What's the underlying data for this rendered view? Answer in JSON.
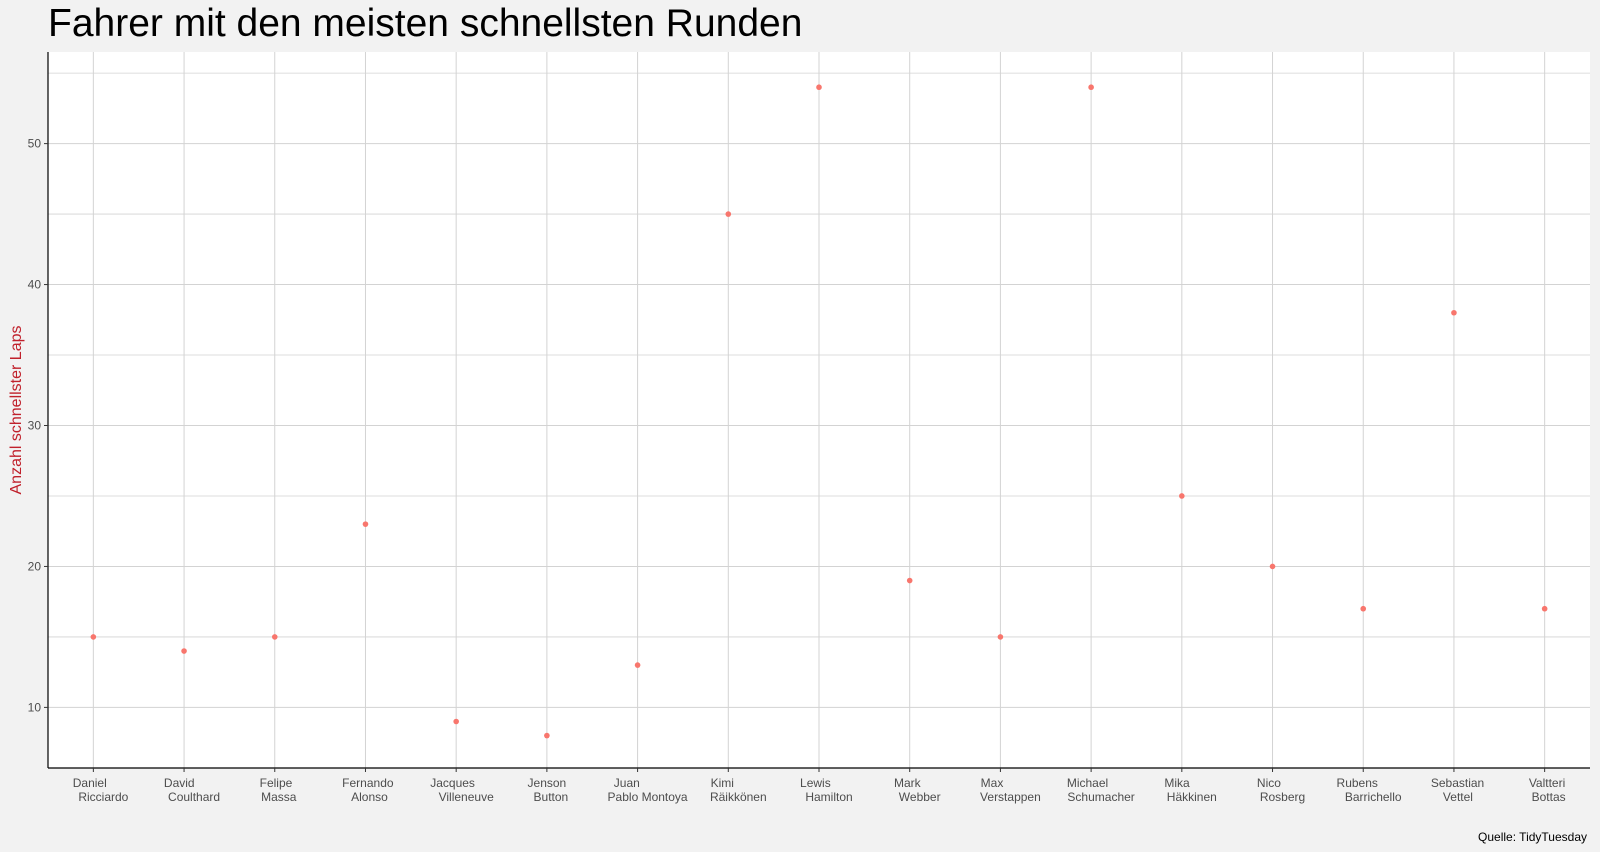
{
  "chart_data": {
    "type": "scatter",
    "title": "Fahrer mit den meisten schnellsten Runden",
    "xlabel": "",
    "ylabel": "Anzahl schnellster Laps",
    "caption": "Quelle: TidyTuesday",
    "categories": [
      [
        "Daniel",
        "Ricciardo"
      ],
      [
        "David",
        "Coulthard"
      ],
      [
        "Felipe",
        "Massa"
      ],
      [
        "Fernando",
        "Alonso"
      ],
      [
        "Jacques",
        "Villeneuve"
      ],
      [
        "Jenson",
        "Button"
      ],
      [
        "Juan",
        "Pablo Montoya"
      ],
      [
        "Kimi",
        "Räikkönen"
      ],
      [
        "Lewis",
        "Hamilton"
      ],
      [
        "Mark",
        "Webber"
      ],
      [
        "Max",
        "Verstappen"
      ],
      [
        "Michael",
        "Schumacher"
      ],
      [
        "Mika",
        "Häkkinen"
      ],
      [
        "Nico",
        "Rosberg"
      ],
      [
        "Rubens",
        "Barrichello"
      ],
      [
        "Sebastian",
        "Vettel"
      ],
      [
        "Valtteri",
        "Bottas"
      ]
    ],
    "values": [
      15,
      14,
      15,
      23,
      9,
      8,
      13,
      45,
      54,
      19,
      15,
      54,
      25,
      20,
      17,
      38,
      17
    ],
    "ylim": [
      5.7,
      56.5
    ],
    "yticks": [
      10,
      20,
      30,
      40,
      50
    ],
    "y_minor_gridlines": [
      15,
      25,
      35,
      45,
      55
    ],
    "grid": true,
    "legend": "none",
    "colors": {
      "point": "#f8766d",
      "ylabel": "#c0202b",
      "grid": "#d3d3d3",
      "axis": "#000000",
      "tick_label": "#4d4d4d",
      "background": "#f2f2f2"
    }
  }
}
